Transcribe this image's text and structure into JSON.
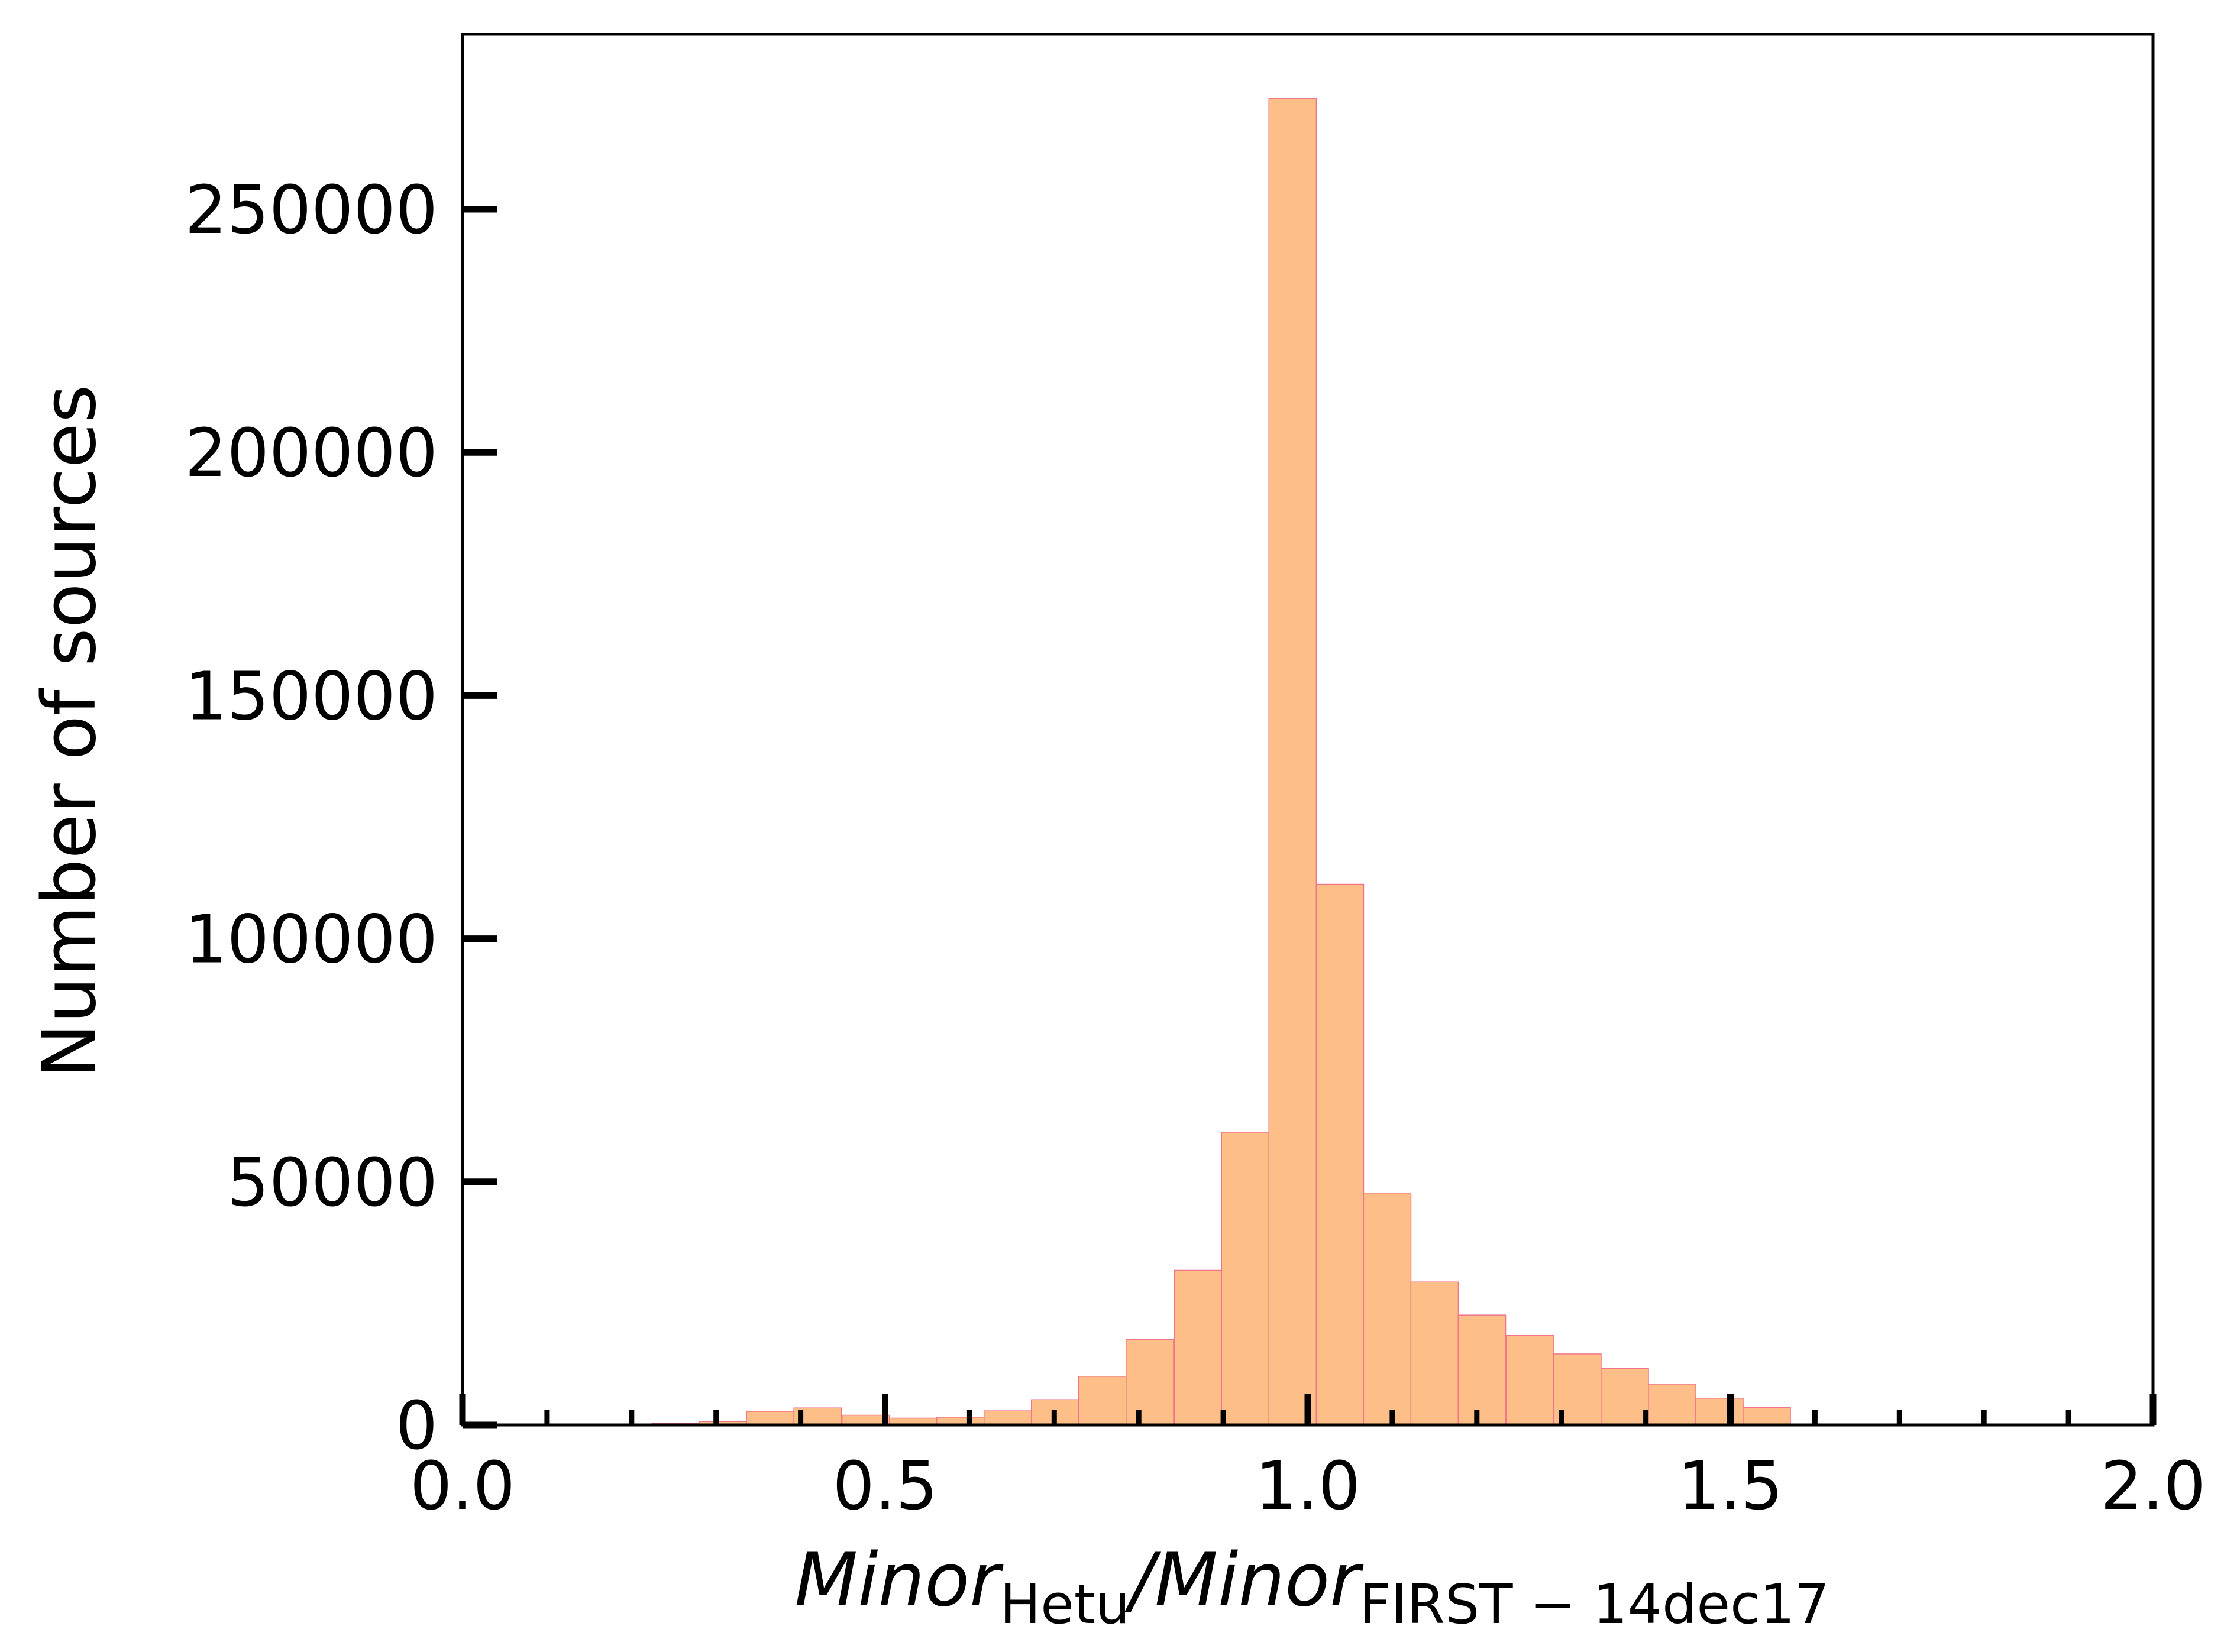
{
  "chart_data": {
    "type": "bar",
    "title": "",
    "xlabel": {
      "main1": "Minor",
      "sub1": "Hetu",
      "slash": "/",
      "main2": "Minor",
      "sub2": "FIRST − 14dec17"
    },
    "ylabel": "Number of sources",
    "xlim": [
      0.0,
      2.0
    ],
    "ylim": [
      0,
      286000
    ],
    "x_ticks": [
      0.0,
      0.5,
      1.0,
      1.5,
      2.0
    ],
    "x_tick_labels": [
      "0.0",
      "0.5",
      "1.0",
      "1.5",
      "2.0"
    ],
    "x_minor_ticks": [
      0.1,
      0.2,
      0.3,
      0.4,
      0.6,
      0.7,
      0.8,
      0.9,
      1.1,
      1.2,
      1.3,
      1.4,
      1.6,
      1.7,
      1.8,
      1.9
    ],
    "y_ticks": [
      0,
      50000,
      100000,
      150000,
      200000,
      250000
    ],
    "y_tick_labels": [
      "0",
      "50000",
      "100000",
      "150000",
      "200000",
      "250000"
    ],
    "bin_width": 0.0561,
    "bins": [
      {
        "x0": 0.224,
        "count": 300
      },
      {
        "x0": 0.28,
        "count": 700
      },
      {
        "x0": 0.336,
        "count": 2800
      },
      {
        "x0": 0.392,
        "count": 3500
      },
      {
        "x0": 0.449,
        "count": 2000
      },
      {
        "x0": 0.505,
        "count": 1400
      },
      {
        "x0": 0.561,
        "count": 1600
      },
      {
        "x0": 0.617,
        "count": 2900
      },
      {
        "x0": 0.673,
        "count": 5200
      },
      {
        "x0": 0.729,
        "count": 10000
      },
      {
        "x0": 0.785,
        "count": 17600
      },
      {
        "x0": 0.842,
        "count": 31800
      },
      {
        "x0": 0.898,
        "count": 60200
      },
      {
        "x0": 0.954,
        "count": 272800
      },
      {
        "x0": 1.01,
        "count": 111200
      },
      {
        "x0": 1.066,
        "count": 47700
      },
      {
        "x0": 1.122,
        "count": 29400
      },
      {
        "x0": 1.178,
        "count": 22600
      },
      {
        "x0": 1.235,
        "count": 18400
      },
      {
        "x0": 1.291,
        "count": 14600
      },
      {
        "x0": 1.347,
        "count": 11600
      },
      {
        "x0": 1.403,
        "count": 8400
      },
      {
        "x0": 1.459,
        "count": 5500
      },
      {
        "x0": 1.515,
        "count": 3600
      }
    ],
    "bar_fill": "#fdbe87",
    "bar_edge": "#f0748a",
    "grid": false,
    "legend": "none"
  }
}
